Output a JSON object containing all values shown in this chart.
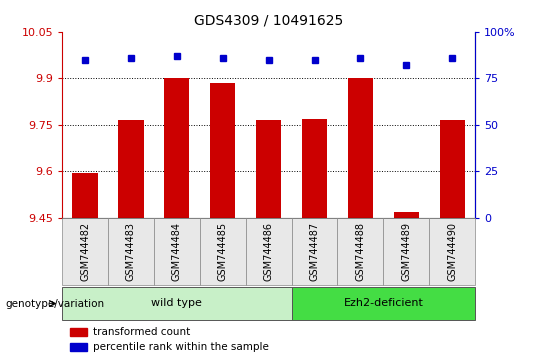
{
  "title": "GDS4309 / 10491625",
  "samples": [
    "GSM744482",
    "GSM744483",
    "GSM744484",
    "GSM744485",
    "GSM744486",
    "GSM744487",
    "GSM744488",
    "GSM744489",
    "GSM744490"
  ],
  "bar_values": [
    9.595,
    9.765,
    9.9,
    9.885,
    9.765,
    9.77,
    9.9,
    9.47,
    9.765
  ],
  "percentile_values": [
    85,
    86,
    87,
    86,
    85,
    85,
    86,
    82,
    86
  ],
  "ylim_left": [
    9.45,
    10.05
  ],
  "yticks_left": [
    9.45,
    9.6,
    9.75,
    9.9,
    10.05
  ],
  "yticklabels_left": [
    "9.45",
    "9.6",
    "9.75",
    "9.9",
    "10.05"
  ],
  "ylim_right": [
    0,
    100
  ],
  "yticks_right": [
    0,
    25,
    50,
    75,
    100
  ],
  "yticklabels_right": [
    "0",
    "25",
    "50",
    "75",
    "100%"
  ],
  "bar_color": "#cc0000",
  "dot_color": "#0000cc",
  "groups": [
    {
      "label": "wild type",
      "start": 0,
      "end": 4,
      "color": "#c8f0c8"
    },
    {
      "label": "Ezh2-deficient",
      "start": 5,
      "end": 8,
      "color": "#44dd44"
    }
  ],
  "legend_bar_label": "transformed count",
  "legend_dot_label": "percentile rank within the sample",
  "group_label": "genotype/variation",
  "left_label_color": "#cc0000",
  "right_label_color": "#0000cc",
  "title_fontsize": 10,
  "tick_fontsize": 8,
  "sample_label_fontsize": 7,
  "bg_color": "#e8e8e8"
}
